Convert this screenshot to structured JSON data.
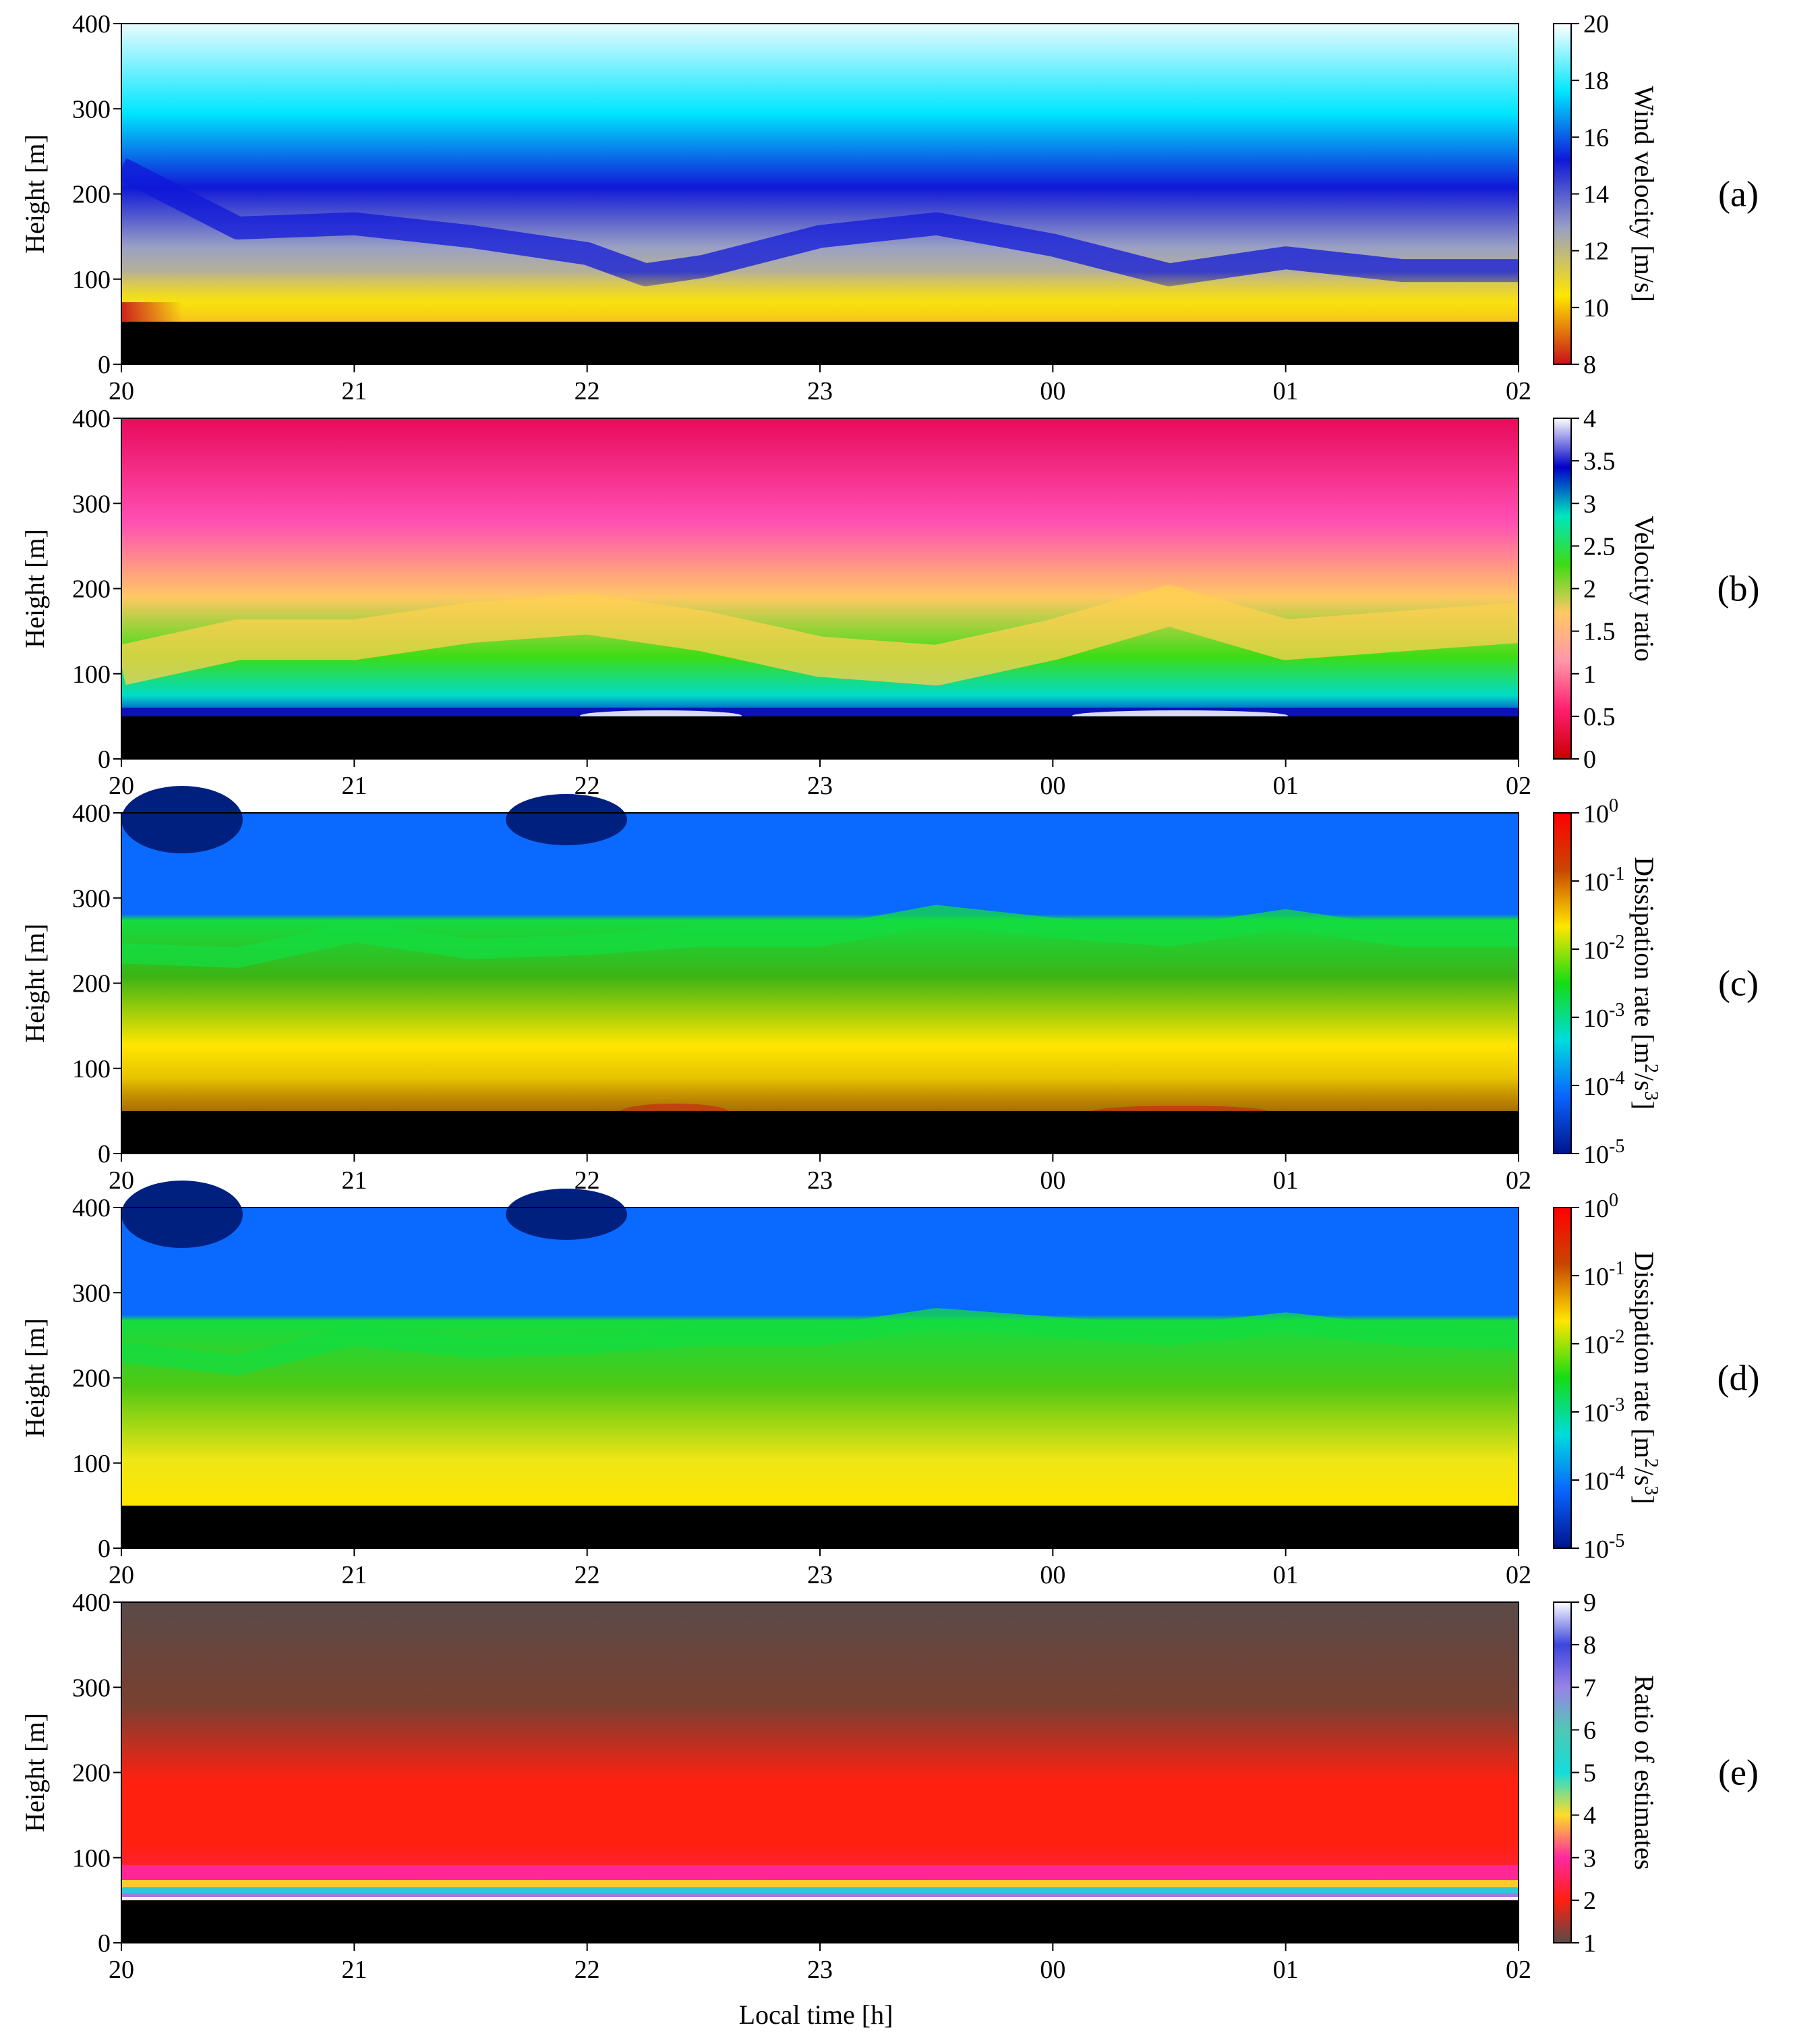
{
  "figure": {
    "xlabel": "Local time [h]",
    "ylabel": "Height [m]"
  },
  "chart_data": [
    {
      "type": "heatmap",
      "panel": "(a)",
      "xlabel": "",
      "ylabel": "Height [m]",
      "ylim": [
        0,
        400
      ],
      "ymin_valid": 50,
      "x_ticks": [
        "20",
        "21",
        "22",
        "23",
        "00",
        "01",
        "02"
      ],
      "y_ticks": [
        "0",
        "100",
        "200",
        "300",
        "400"
      ],
      "colorbar": {
        "label": "Wind velocity [m/s]",
        "range": [
          8,
          20
        ],
        "ticks": [
          "8",
          "10",
          "12",
          "14",
          "16",
          "18",
          "20"
        ],
        "stops": [
          "#c8101a",
          "#ffe600",
          "#9aa0c4",
          "#1018d8",
          "#00e6ff",
          "#ffffff"
        ]
      },
      "x_hours": [
        0,
        0.5,
        1,
        1.5,
        2,
        2.25,
        2.5,
        3,
        3.5,
        4,
        4.5,
        5,
        5.5,
        6
      ],
      "series": [
        {
          "name": "Height of 14 m/s contour [m]",
          "values": [
            230,
            160,
            165,
            150,
            130,
            105,
            115,
            150,
            165,
            140,
            105,
            125,
            110,
            110
          ]
        }
      ]
    },
    {
      "type": "heatmap",
      "panel": "(b)",
      "xlabel": "",
      "ylabel": "Height [m]",
      "ylim": [
        0,
        400
      ],
      "ymin_valid": 50,
      "x_ticks": [
        "20",
        "21",
        "22",
        "23",
        "00",
        "01",
        "02"
      ],
      "y_ticks": [
        "0",
        "100",
        "200",
        "300",
        "400"
      ],
      "colorbar": {
        "label": "Velocity ratio",
        "range": [
          0,
          4
        ],
        "ticks": [
          "0",
          "0.5",
          "1",
          "1.5",
          "2",
          "2.5",
          "3",
          "3.5",
          "4"
        ],
        "stops": [
          "#c80000",
          "#ff1e6e",
          "#ff96aa",
          "#ffc864",
          "#3cdc14",
          "#00e6be",
          "#0000c8",
          "#ffffff"
        ]
      },
      "x_hours": [
        0,
        0.5,
        1,
        1.5,
        2,
        2.5,
        3,
        3.5,
        4,
        4.5,
        5,
        5.5,
        6
      ],
      "series": [
        {
          "name": "Height of ratio 2 contour [m]",
          "values": [
            110,
            140,
            140,
            160,
            170,
            150,
            120,
            110,
            140,
            180,
            140,
            150,
            160
          ]
        }
      ]
    },
    {
      "type": "heatmap",
      "panel": "(c)",
      "xlabel": "",
      "ylabel": "Height [m]",
      "ylim": [
        0,
        400
      ],
      "ymin_valid": 50,
      "x_ticks": [
        "20",
        "21",
        "22",
        "23",
        "00",
        "01",
        "02"
      ],
      "y_ticks": [
        "0",
        "100",
        "200",
        "300",
        "400"
      ],
      "colorbar": {
        "label": "Dissipation rate [m²/s³]",
        "label_parts": [
          "Dissipation rate [m",
          "2",
          "/s",
          "3",
          "]"
        ],
        "scale": "log",
        "range": [
          -5,
          0
        ],
        "tick_base": "10",
        "tick_exponents": [
          "-5",
          "-4",
          "-3",
          "-2",
          "-1",
          "0"
        ],
        "stops": [
          "#00148c",
          "#0a64ff",
          "#00dcdc",
          "#14dc14",
          "#ffe600",
          "#c84600",
          "#ff0000"
        ]
      },
      "x_hours": [
        0,
        0.5,
        1,
        1.5,
        2,
        2.5,
        3,
        3.5,
        4,
        4.5,
        5,
        5.5,
        6
      ],
      "series": [
        {
          "name": "Top of green layer [m]",
          "values": [
            235,
            230,
            260,
            240,
            245,
            255,
            255,
            280,
            265,
            255,
            275,
            255,
            255
          ]
        }
      ]
    },
    {
      "type": "heatmap",
      "panel": "(d)",
      "xlabel": "",
      "ylabel": "Height [m]",
      "ylim": [
        0,
        400
      ],
      "ymin_valid": 50,
      "x_ticks": [
        "20",
        "21",
        "22",
        "23",
        "00",
        "01",
        "02"
      ],
      "y_ticks": [
        "0",
        "100",
        "200",
        "300",
        "400"
      ],
      "colorbar": {
        "label": "Dissipation rate [m²/s³]",
        "label_parts": [
          "Dissipation rate [m",
          "2",
          "/s",
          "3",
          "]"
        ],
        "scale": "log",
        "range": [
          -5,
          0
        ],
        "tick_base": "10",
        "tick_exponents": [
          "-5",
          "-4",
          "-3",
          "-2",
          "-1",
          "0"
        ],
        "stops": [
          "#00148c",
          "#0a64ff",
          "#00dcdc",
          "#14dc14",
          "#ffe600",
          "#c84600",
          "#ff0000"
        ]
      },
      "x_hours": [
        0,
        0.5,
        1,
        1.5,
        2,
        2.5,
        3,
        3.5,
        4,
        4.5,
        5,
        5.5,
        6
      ],
      "series": [
        {
          "name": "Top of green layer [m]",
          "values": [
            230,
            215,
            250,
            235,
            240,
            250,
            250,
            270,
            260,
            250,
            265,
            250,
            245
          ]
        }
      ]
    },
    {
      "type": "heatmap",
      "panel": "(e)",
      "xlabel": "Local time [h]",
      "ylabel": "Height [m]",
      "ylim": [
        0,
        400
      ],
      "ymin_valid": 50,
      "x_ticks": [
        "20",
        "21",
        "22",
        "23",
        "00",
        "01",
        "02"
      ],
      "y_ticks": [
        "0",
        "100",
        "200",
        "300",
        "400"
      ],
      "colorbar": {
        "label": "Ratio of estimates",
        "range": [
          1,
          9
        ],
        "ticks": [
          "1",
          "2",
          "3",
          "4",
          "5",
          "6",
          "7",
          "8",
          "9"
        ],
        "stops": [
          "#5a4a48",
          "#ff2010",
          "#ff28a0",
          "#ffdc28",
          "#14dcdc",
          "#50c8b4",
          "#9a82e6",
          "#3c46dc",
          "#ffffff"
        ]
      },
      "x_hours": [
        0,
        1,
        2,
        2.5,
        3,
        4,
        5,
        6
      ],
      "series": [
        {
          "name": "Height of ratio 3 contour [m]",
          "values": [
            100,
            100,
            110,
            105,
            100,
            105,
            110,
            105
          ]
        }
      ]
    }
  ]
}
